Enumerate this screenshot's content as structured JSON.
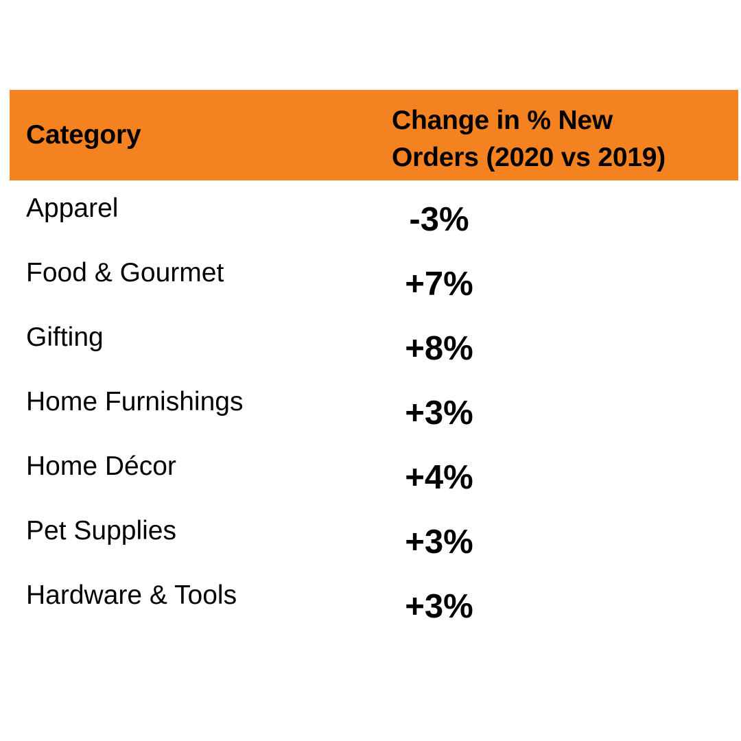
{
  "chart_data": {
    "type": "table",
    "header": {
      "category": "Category",
      "change_line1": "Change in % New",
      "change_line2": "Orders (2020 vs 2019)"
    },
    "header_color": "#F58220",
    "rows": [
      {
        "category": "Apparel",
        "change": "-3%"
      },
      {
        "category": "Food & Gourmet",
        "change": "+7%"
      },
      {
        "category": "Gifting",
        "change": "+8%"
      },
      {
        "category": "Home Furnishings",
        "change": "+3%"
      },
      {
        "category": "Home Décor",
        "change": "+4%"
      },
      {
        "category": "Pet Supplies",
        "change": "+3%"
      },
      {
        "category": "Hardware & Tools",
        "change": "+3%"
      }
    ],
    "values": [
      -3,
      7,
      8,
      3,
      4,
      3,
      3
    ]
  }
}
